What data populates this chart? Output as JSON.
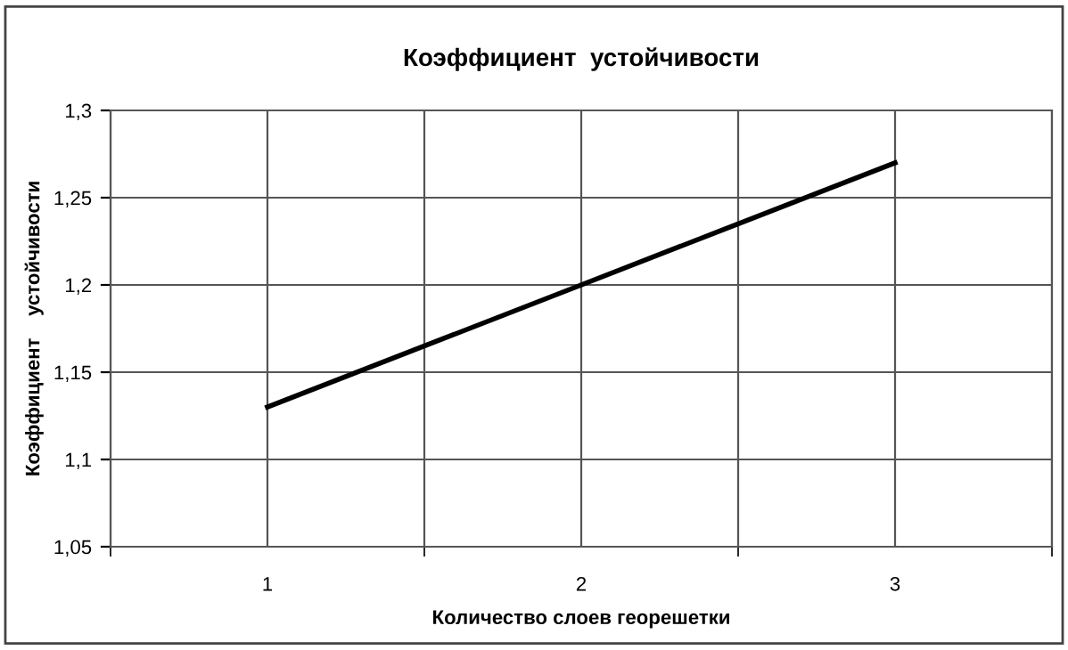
{
  "chart_data": {
    "type": "line",
    "title": "Коэффициент  устойчивости",
    "xlabel": "Количество слоев георешетки",
    "ylabel": "Коэффициент    устойчивости",
    "categories": [
      "1",
      "2",
      "3"
    ],
    "series": [
      {
        "color": "#000000",
        "values": [
          1.13,
          1.2,
          1.27
        ]
      }
    ],
    "ylim": [
      1.05,
      1.3
    ],
    "yticks": [
      {
        "value": 1.05,
        "label": "1,05"
      },
      {
        "value": 1.1,
        "label": "1,1"
      },
      {
        "value": 1.15,
        "label": "1,15"
      },
      {
        "value": 1.2,
        "label": "1,2"
      },
      {
        "value": 1.25,
        "label": "1,25"
      },
      {
        "value": 1.3,
        "label": "1,3"
      }
    ],
    "grid": true,
    "marker": "none",
    "line_style": "solid"
  }
}
